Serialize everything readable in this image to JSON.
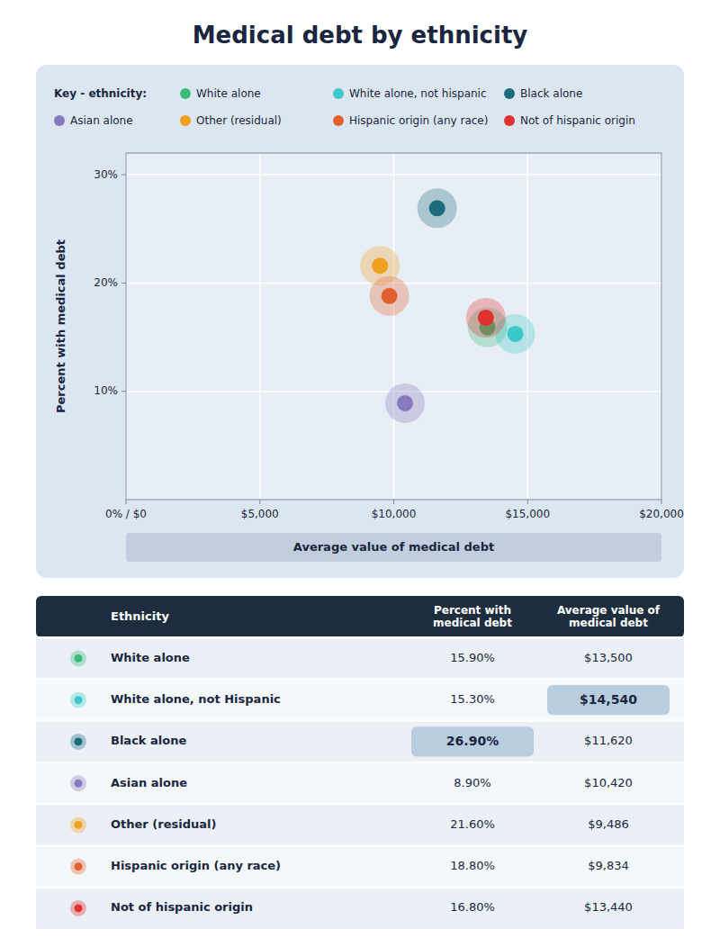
{
  "chart_data": [
    {
      "type": "scatter",
      "title": "Medical debt by ethnicity",
      "x_label": "Average value of medical debt",
      "y_label": "Percent with medical debt",
      "legend_title": "Key - ethnicity:",
      "legend": "top",
      "grid": true,
      "xlim": [
        0,
        20000
      ],
      "ylim": [
        0,
        32
      ],
      "xticks": [
        {
          "value": 0,
          "label": "0% / $0"
        },
        {
          "value": 5000,
          "label": "$5,000"
        },
        {
          "value": 10000,
          "label": "$10,000"
        },
        {
          "value": 15000,
          "label": "$15,000"
        },
        {
          "value": 20000,
          "label": "$20,000"
        }
      ],
      "yticks": [
        {
          "value": 10,
          "label": "10%"
        },
        {
          "value": 20,
          "label": "20%"
        },
        {
          "value": 30,
          "label": "30%"
        }
      ],
      "series": [
        {
          "name": "White alone",
          "color": "#3dba78",
          "x": [
            13500
          ],
          "values": [
            15.9
          ]
        },
        {
          "name": "White alone, not hispanic",
          "color": "#3bc8c8",
          "x": [
            14540
          ],
          "values": [
            15.3
          ]
        },
        {
          "name": "Black alone",
          "color": "#1b6b7a",
          "x": [
            11620
          ],
          "values": [
            26.9
          ]
        },
        {
          "name": "Asian alone",
          "color": "#8878bc",
          "x": [
            10420
          ],
          "values": [
            8.9
          ]
        },
        {
          "name": "Other (residual)",
          "color": "#f0a020",
          "x": [
            9486
          ],
          "values": [
            21.6
          ]
        },
        {
          "name": "Hispanic origin (any race)",
          "color": "#e06030",
          "x": [
            9834
          ],
          "values": [
            18.8
          ]
        },
        {
          "name": "Not of hispanic origin",
          "color": "#e03030",
          "x": [
            13440
          ],
          "values": [
            16.8
          ]
        }
      ]
    },
    {
      "type": "table",
      "x_label": "Ethnicity",
      "categories": [
        "White alone",
        "White alone, not Hispanic",
        "Black alone",
        "Asian alone",
        "Other (residual)",
        "Hispanic origin (any race)",
        "Not of hispanic origin"
      ],
      "colors": [
        "#3dba78",
        "#3bc8c8",
        "#1b6b7a",
        "#8878bc",
        "#f0a020",
        "#e06030",
        "#e03030"
      ],
      "series": [
        {
          "name": "Percent with\nmedical debt",
          "values": [
            15.9,
            15.3,
            26.9,
            8.9,
            21.6,
            18.8,
            16.8
          ],
          "value_labels": [
            "15.90%",
            "15.30%",
            "26.90%",
            "8.90%",
            "21.60%",
            "18.80%",
            "16.80%"
          ]
        },
        {
          "name": "Average value of\nmedical debt",
          "values": [
            13500,
            14540,
            11620,
            10420,
            9486,
            9834,
            13440
          ],
          "value_labels": [
            "$13,500",
            "$14,540",
            "$11,620",
            "$10,420",
            "$9,486",
            "$9,834",
            "$13,440"
          ]
        }
      ]
    }
  ]
}
